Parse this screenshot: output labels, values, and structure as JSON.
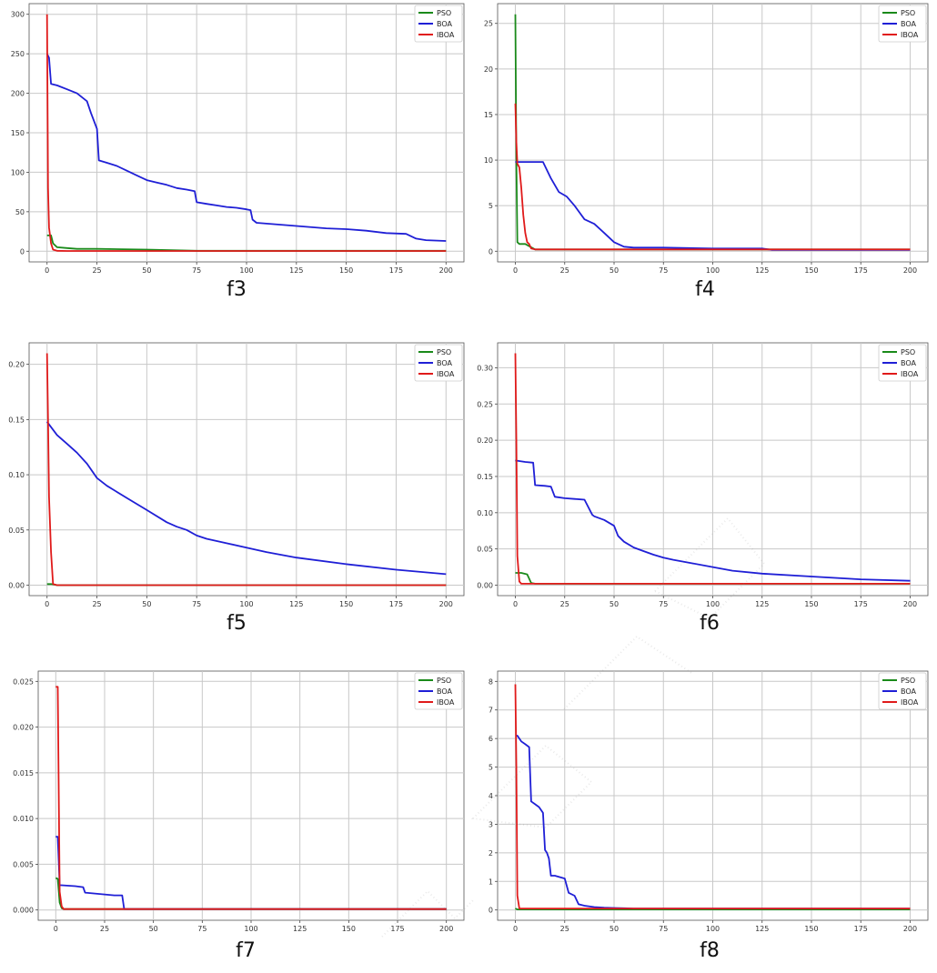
{
  "chart_data": [
    {
      "type": "line",
      "title": "f3",
      "xlim": [
        0,
        200
      ],
      "ylim": [
        0,
        300
      ],
      "xticks": [
        0,
        25,
        50,
        75,
        100,
        125,
        150,
        175,
        200
      ],
      "yticks": [
        0,
        50,
        100,
        150,
        200,
        250,
        300
      ],
      "grid": true,
      "legend_position": "top-right",
      "series": [
        {
          "name": "PSO",
          "color": "#1a8a1a",
          "x": [
            0,
            2,
            3,
            5,
            10,
            15,
            25,
            50,
            75,
            200
          ],
          "y": [
            20,
            20,
            10,
            5,
            4,
            3,
            3,
            2,
            0.5,
            0.5
          ]
        },
        {
          "name": "BOA",
          "color": "#1f1fd6",
          "x": [
            0,
            1,
            2,
            5,
            10,
            15,
            20,
            22,
            25,
            26,
            30,
            35,
            40,
            45,
            50,
            55,
            60,
            65,
            70,
            74,
            75,
            80,
            85,
            90,
            95,
            100,
            102,
            103,
            105,
            110,
            120,
            130,
            140,
            150,
            160,
            170,
            180,
            185,
            190,
            200
          ],
          "y": [
            250,
            245,
            212,
            210,
            205,
            200,
            190,
            175,
            155,
            115,
            112,
            108,
            102,
            96,
            90,
            87,
            84,
            80,
            78,
            76,
            62,
            60,
            58,
            56,
            55,
            53,
            52,
            40,
            36,
            35,
            33,
            31,
            29,
            28,
            26,
            23,
            22,
            16,
            14,
            13
          ]
        },
        {
          "name": "IBOA",
          "color": "#e01a1a",
          "x": [
            0,
            0.5,
            1,
            2,
            3,
            5,
            10,
            200
          ],
          "y": [
            300,
            80,
            30,
            10,
            2,
            0.5,
            0.3,
            0.3
          ]
        }
      ]
    },
    {
      "type": "line",
      "title": "f4",
      "xlim": [
        0,
        200
      ],
      "ylim": [
        0,
        26
      ],
      "xticks": [
        0,
        25,
        50,
        75,
        100,
        125,
        150,
        175,
        200
      ],
      "yticks": [
        0,
        5,
        10,
        15,
        20,
        25
      ],
      "grid": true,
      "legend_position": "top-right",
      "series": [
        {
          "name": "PSO",
          "color": "#1a8a1a",
          "x": [
            0,
            0.5,
            1,
            2,
            5,
            10,
            200
          ],
          "y": [
            26,
            10,
            1,
            0.8,
            0.8,
            0.2,
            0.2
          ]
        },
        {
          "name": "BOA",
          "color": "#1f1fd6",
          "x": [
            0,
            5,
            10,
            14,
            18,
            22,
            26,
            30,
            35,
            40,
            45,
            50,
            55,
            60,
            65,
            75,
            100,
            125,
            130,
            150,
            175,
            200
          ],
          "y": [
            9.8,
            9.8,
            9.8,
            9.8,
            8,
            6.5,
            6,
            5,
            3.5,
            3,
            2,
            1,
            0.5,
            0.4,
            0.4,
            0.4,
            0.3,
            0.3,
            0.15,
            0.15,
            0.15,
            0.15
          ]
        },
        {
          "name": "IBOA",
          "color": "#e01a1a",
          "x": [
            0,
            0.5,
            1,
            2,
            3,
            4,
            5,
            6,
            7,
            8,
            10,
            200
          ],
          "y": [
            16.2,
            12,
            9.6,
            9.2,
            7,
            4,
            2,
            1,
            0.8,
            0.3,
            0.2,
            0.2
          ]
        }
      ]
    },
    {
      "type": "line",
      "title": "f5",
      "xlim": [
        0,
        200
      ],
      "ylim": [
        0,
        0.21
      ],
      "xticks": [
        0,
        25,
        50,
        75,
        100,
        125,
        150,
        175,
        200
      ],
      "yticks": [
        0.0,
        0.05,
        0.1,
        0.15,
        0.2
      ],
      "grid": true,
      "legend_position": "top-right",
      "series": [
        {
          "name": "PSO",
          "color": "#1a8a1a",
          "x": [
            0,
            2,
            5,
            200
          ],
          "y": [
            0.001,
            0.001,
            0.0,
            0.0
          ]
        },
        {
          "name": "BOA",
          "color": "#1f1fd6",
          "x": [
            0,
            5,
            10,
            15,
            20,
            25,
            30,
            40,
            50,
            60,
            65,
            70,
            75,
            80,
            90,
            100,
            110,
            125,
            150,
            175,
            200
          ],
          "y": [
            0.148,
            0.136,
            0.128,
            0.12,
            0.11,
            0.097,
            0.09,
            0.079,
            0.068,
            0.057,
            0.053,
            0.05,
            0.045,
            0.042,
            0.038,
            0.034,
            0.03,
            0.025,
            0.019,
            0.014,
            0.01
          ]
        },
        {
          "name": "IBOA",
          "color": "#e01a1a",
          "x": [
            0,
            0.5,
            1,
            2,
            3,
            5,
            200
          ],
          "y": [
            0.21,
            0.15,
            0.08,
            0.03,
            0.001,
            0.0,
            0.0
          ]
        }
      ]
    },
    {
      "type": "line",
      "title": "f6",
      "xlim": [
        0,
        200
      ],
      "ylim": [
        0,
        0.32
      ],
      "xticks": [
        0,
        25,
        50,
        75,
        100,
        125,
        150,
        175,
        200
      ],
      "yticks": [
        0.0,
        0.05,
        0.1,
        0.15,
        0.2,
        0.25,
        0.3
      ],
      "grid": true,
      "legend_position": "top-right",
      "series": [
        {
          "name": "PSO",
          "color": "#1a8a1a",
          "x": [
            0,
            3,
            6,
            8,
            10,
            200
          ],
          "y": [
            0.017,
            0.017,
            0.015,
            0.003,
            0.002,
            0.002
          ]
        },
        {
          "name": "BOA",
          "color": "#1f1fd6",
          "x": [
            0,
            5,
            9,
            10,
            15,
            18,
            20,
            25,
            30,
            35,
            39,
            40,
            45,
            50,
            52,
            55,
            60,
            65,
            70,
            75,
            80,
            90,
            100,
            110,
            125,
            150,
            175,
            200
          ],
          "y": [
            0.172,
            0.17,
            0.169,
            0.138,
            0.137,
            0.136,
            0.122,
            0.12,
            0.119,
            0.118,
            0.097,
            0.095,
            0.09,
            0.082,
            0.068,
            0.06,
            0.052,
            0.047,
            0.042,
            0.038,
            0.035,
            0.03,
            0.025,
            0.02,
            0.016,
            0.012,
            0.008,
            0.006
          ]
        },
        {
          "name": "IBOA",
          "color": "#e01a1a",
          "x": [
            0,
            0.5,
            1,
            2,
            3,
            5,
            200
          ],
          "y": [
            0.32,
            0.2,
            0.04,
            0.005,
            0.002,
            0.002,
            0.002
          ]
        }
      ]
    },
    {
      "type": "line",
      "title": "f7",
      "xlim": [
        0,
        200
      ],
      "ylim": [
        0,
        0.025
      ],
      "xticks": [
        0,
        25,
        50,
        75,
        100,
        125,
        150,
        175,
        200
      ],
      "yticks": [
        0.0,
        0.005,
        0.01,
        0.015,
        0.02,
        0.025
      ],
      "grid": true,
      "legend_position": "top-right",
      "series": [
        {
          "name": "PSO",
          "color": "#1a8a1a",
          "x": [
            0,
            1,
            2,
            3,
            4,
            200
          ],
          "y": [
            0.0035,
            0.0034,
            0.0008,
            0.0002,
            0.0001,
            0.0001
          ]
        },
        {
          "name": "BOA",
          "color": "#1f1fd6",
          "x": [
            0,
            1,
            2,
            3,
            10,
            14,
            15,
            20,
            25,
            30,
            34,
            35,
            200
          ],
          "y": [
            0.008,
            0.008,
            0.0027,
            0.0027,
            0.0026,
            0.0025,
            0.0019,
            0.0018,
            0.0017,
            0.0016,
            0.0016,
            0.0001,
            0.0001
          ]
        },
        {
          "name": "IBOA",
          "color": "#e01a1a",
          "x": [
            0,
            1,
            2,
            3,
            4,
            200
          ],
          "y": [
            0.0244,
            0.0244,
            0.002,
            0.0004,
            0.0001,
            0.0001
          ]
        }
      ]
    },
    {
      "type": "line",
      "title": "f8",
      "xlim": [
        0,
        200
      ],
      "ylim": [
        0,
        8
      ],
      "xticks": [
        0,
        25,
        50,
        75,
        100,
        125,
        150,
        175,
        200
      ],
      "yticks": [
        0,
        1,
        2,
        3,
        4,
        5,
        6,
        7,
        8
      ],
      "grid": true,
      "legend_position": "top-right",
      "series": [
        {
          "name": "PSO",
          "color": "#1a8a1a",
          "x": [
            0,
            1,
            200
          ],
          "y": [
            0.05,
            0.02,
            0.02
          ]
        },
        {
          "name": "BOA",
          "color": "#1f1fd6",
          "x": [
            0,
            1,
            3,
            5,
            7,
            8,
            10,
            12,
            14,
            15,
            16,
            17,
            18,
            20,
            25,
            27,
            30,
            32,
            35,
            40,
            45,
            50,
            55,
            60,
            65,
            200
          ],
          "y": [
            6.1,
            6.1,
            5.9,
            5.8,
            5.7,
            3.8,
            3.7,
            3.6,
            3.4,
            2.1,
            2.0,
            1.8,
            1.2,
            1.2,
            1.1,
            0.6,
            0.5,
            0.2,
            0.15,
            0.1,
            0.08,
            0.07,
            0.06,
            0.05,
            0.05,
            0.05
          ]
        },
        {
          "name": "IBOA",
          "color": "#e01a1a",
          "x": [
            0,
            0.5,
            1,
            2,
            200
          ],
          "y": [
            7.9,
            5,
            0.5,
            0.05,
            0.05
          ]
        }
      ]
    }
  ]
}
